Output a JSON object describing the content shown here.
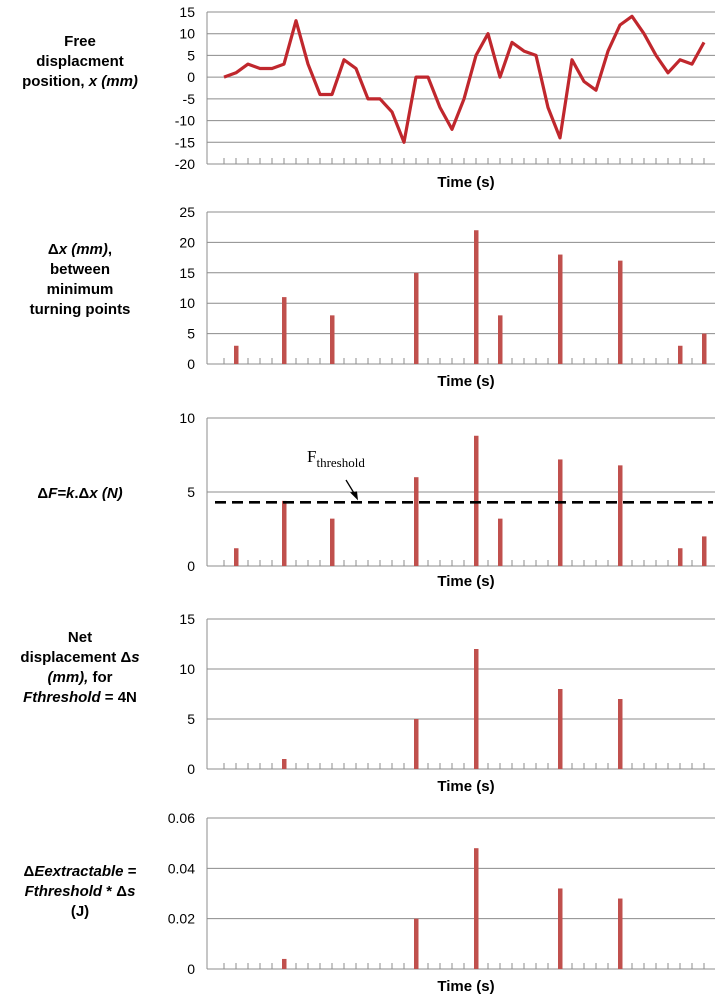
{
  "chart_data": [
    {
      "type": "line",
      "label_lines": [
        [
          "Free"
        ],
        [
          "displacment"
        ],
        [
          "position, ",
          {
            "i": "x (mm)"
          }
        ]
      ],
      "xlabel": "Time (s)",
      "ylim": [
        -20,
        15
      ],
      "yticks": [
        15,
        10,
        5,
        0,
        -5,
        -10,
        -15,
        -20
      ],
      "yticklabels": [
        "15",
        "10",
        "5",
        "0",
        "-5",
        "-10",
        "-15",
        "-20"
      ],
      "n_slots": 41,
      "color": "#c0272d",
      "values": [
        0,
        1,
        3,
        2,
        2,
        3,
        13,
        3,
        -4,
        -4,
        4,
        2,
        -5,
        -5,
        -8,
        -15,
        0,
        0,
        -7,
        -12,
        -5,
        5,
        10,
        0,
        8,
        6,
        5,
        -7,
        -14,
        4,
        -1,
        -3,
        6,
        12,
        14,
        10,
        5,
        1,
        4,
        3,
        8
      ]
    },
    {
      "type": "bar",
      "label_lines": [
        [
          "Δ",
          {
            "i": "x (mm)"
          },
          ","
        ],
        [
          "between"
        ],
        [
          "minimum"
        ],
        [
          "turning points"
        ]
      ],
      "xlabel": "Time (s)",
      "ylim": [
        0,
        25
      ],
      "yticks": [
        25,
        20,
        15,
        10,
        5,
        0
      ],
      "yticklabels": [
        "25",
        "20",
        "15",
        "10",
        "5",
        "0"
      ],
      "n_slots": 41,
      "color": "#c0504d",
      "bars": [
        {
          "slot": 2,
          "value": 3
        },
        {
          "slot": 6,
          "value": 11
        },
        {
          "slot": 10,
          "value": 8
        },
        {
          "slot": 17,
          "value": 15
        },
        {
          "slot": 22,
          "value": 22
        },
        {
          "slot": 24,
          "value": 8
        },
        {
          "slot": 29,
          "value": 18
        },
        {
          "slot": 34,
          "value": 17
        },
        {
          "slot": 39,
          "value": 3
        },
        {
          "slot": 41,
          "value": 5
        }
      ]
    },
    {
      "type": "bar",
      "label_lines": [
        [
          "Δ",
          {
            "i": "F=k"
          },
          ".Δ",
          {
            "i": "x (N)"
          }
        ]
      ],
      "xlabel": "Time (s)",
      "ylim": [
        0,
        10
      ],
      "yticks": [
        10,
        5,
        0
      ],
      "yticklabels": [
        "10",
        "5",
        "0"
      ],
      "n_slots": 41,
      "color": "#c0504d",
      "bars": [
        {
          "slot": 2,
          "value": 1.2
        },
        {
          "slot": 6,
          "value": 4.4
        },
        {
          "slot": 10,
          "value": 3.2
        },
        {
          "slot": 17,
          "value": 6.0
        },
        {
          "slot": 22,
          "value": 8.8
        },
        {
          "slot": 24,
          "value": 3.2
        },
        {
          "slot": 29,
          "value": 7.2
        },
        {
          "slot": 34,
          "value": 6.8
        },
        {
          "slot": 39,
          "value": 1.2
        },
        {
          "slot": 41,
          "value": 2.0
        }
      ],
      "threshold": {
        "value": 4.3,
        "label": "F",
        "label_sub": "threshold"
      }
    },
    {
      "type": "bar",
      "label_lines": [
        [
          "Net"
        ],
        [
          "displacement Δ",
          {
            "i": "s"
          }
        ],
        [
          {
            "i": "(mm),"
          },
          " for"
        ],
        [
          {
            "i": "Fthreshold"
          },
          " = 4N"
        ]
      ],
      "xlabel": "Time (s)",
      "ylim": [
        0,
        15
      ],
      "yticks": [
        15,
        10,
        5,
        0
      ],
      "yticklabels": [
        "15",
        "10",
        "5",
        "0"
      ],
      "n_slots": 41,
      "color": "#c0504d",
      "bars": [
        {
          "slot": 6,
          "value": 1
        },
        {
          "slot": 17,
          "value": 5
        },
        {
          "slot": 22,
          "value": 12
        },
        {
          "slot": 29,
          "value": 8
        },
        {
          "slot": 34,
          "value": 7
        }
      ]
    },
    {
      "type": "bar",
      "label_lines": [
        [
          "Δ",
          {
            "i": "Eextractable"
          },
          " ="
        ],
        [
          {
            "i": "Fthreshold"
          },
          " * Δ",
          {
            "i": "s"
          }
        ],
        [
          "(J)"
        ]
      ],
      "xlabel": "Time (s)",
      "ylim": [
        0,
        0.06
      ],
      "yticks": [
        0.06,
        0.04,
        0.02,
        0
      ],
      "yticklabels": [
        "0.06",
        "0.04",
        "0.02",
        "0"
      ],
      "n_slots": 41,
      "color": "#c0504d",
      "bars": [
        {
          "slot": 6,
          "value": 0.004
        },
        {
          "slot": 17,
          "value": 0.02
        },
        {
          "slot": 22,
          "value": 0.048
        },
        {
          "slot": 29,
          "value": 0.032
        },
        {
          "slot": 34,
          "value": 0.028
        }
      ]
    }
  ]
}
